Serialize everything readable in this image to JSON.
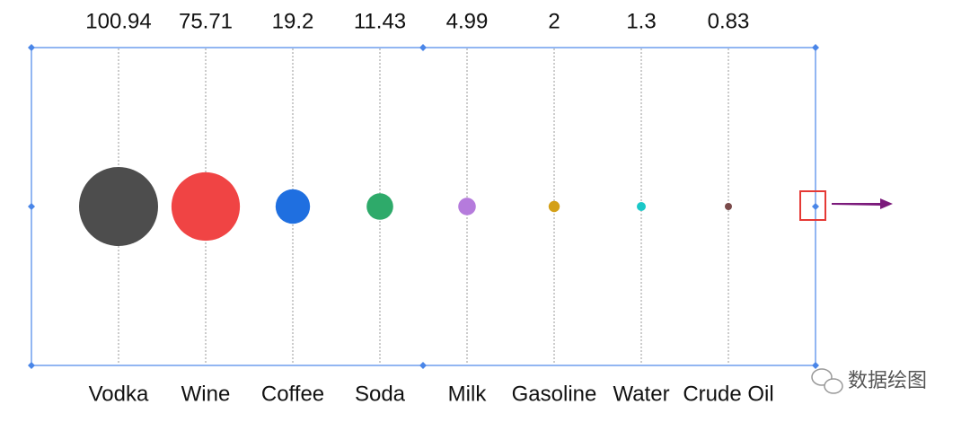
{
  "chart_data": {
    "type": "bubble",
    "categories": [
      "Vodka",
      "Wine",
      "Coffee",
      "Soda",
      "Milk",
      "Gasoline",
      "Water",
      "Crude Oil"
    ],
    "values": [
      100.94,
      75.71,
      19.2,
      11.43,
      4.99,
      2,
      1.3,
      0.83
    ],
    "colors": [
      "#4d4d4d",
      "#f04444",
      "#1f6fe0",
      "#2eaa6a",
      "#b57bdc",
      "#d4a017",
      "#1ac8c8",
      "#7a4a4a"
    ],
    "watermark": "数据绘图"
  }
}
